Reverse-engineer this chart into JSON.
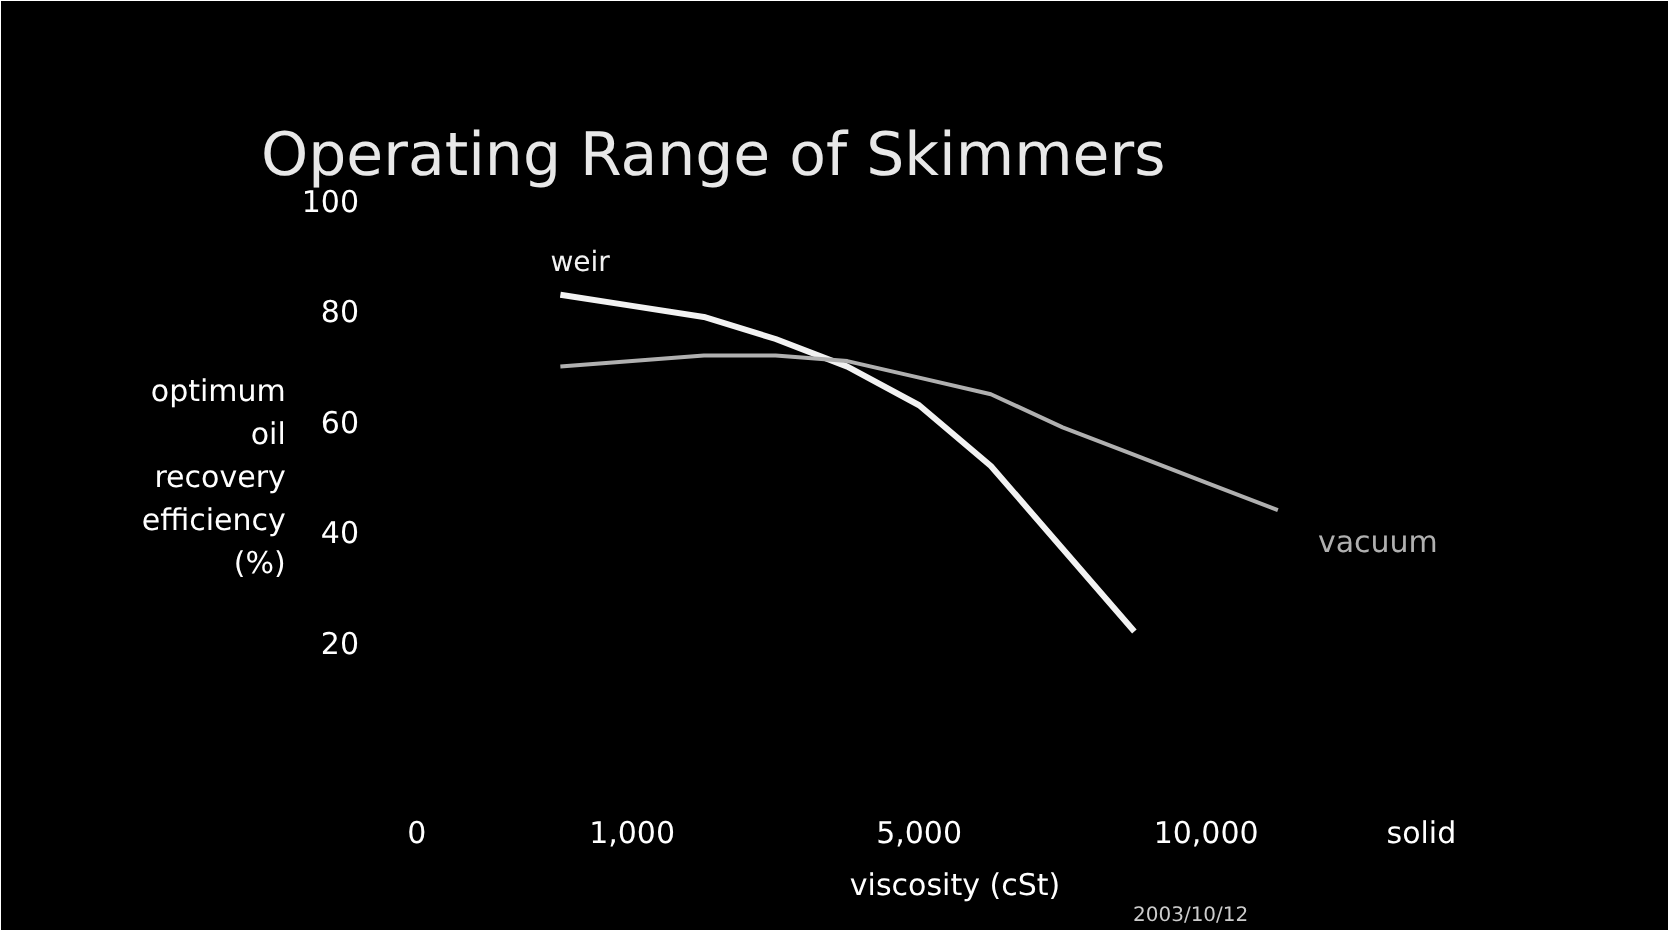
{
  "chart_data": {
    "type": "line",
    "title": "Operating Range of Skimmers",
    "xlabel": "viscosity (cSt)",
    "ylabel": "optimum oil recovery efficiency (%)",
    "categories": [
      "0",
      null,
      null,
      "1,000",
      null,
      null,
      null,
      "5,000",
      null,
      null,
      null,
      "10,000",
      null,
      null,
      "solid",
      null
    ],
    "ylim": [
      0,
      100
    ],
    "yticks": [
      20,
      40,
      60,
      80,
      100
    ],
    "grid": false,
    "marker": "none",
    "line_style": "solid",
    "series": [
      {
        "name": "weir",
        "color": "#f2f2f2",
        "values": [
          null,
          null,
          83,
          81,
          79,
          75,
          70,
          63,
          52,
          37,
          22,
          null,
          null,
          null,
          null,
          null
        ]
      },
      {
        "name": "vacuum",
        "color": "#b0b0b0",
        "values": [
          null,
          null,
          70,
          71,
          72,
          72,
          71,
          68,
          65,
          59,
          54,
          49,
          44,
          null,
          null,
          null
        ]
      }
    ],
    "annotations": [
      "2003/10/12"
    ]
  }
}
